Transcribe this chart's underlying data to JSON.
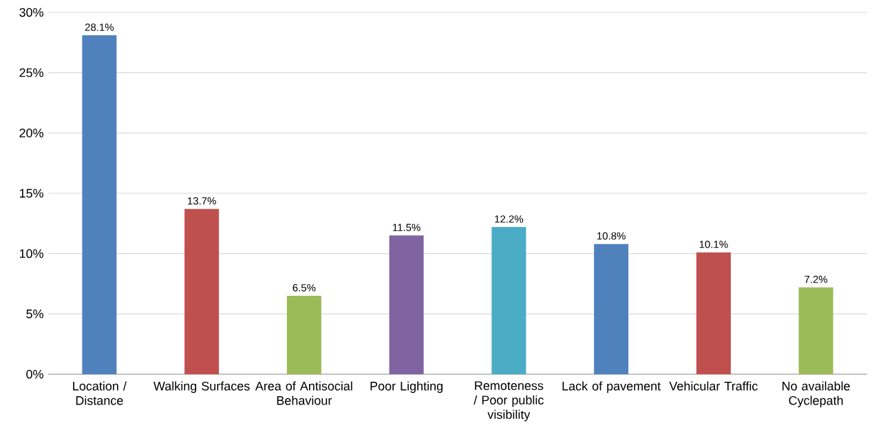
{
  "chart_data": {
    "type": "bar",
    "categories": [
      "Location / Distance",
      "Walking Surfaces",
      "Area of Antisocial Behaviour",
      "Poor Lighting",
      "Remoteness / Poor public visibility",
      "Lack of pavement",
      "Vehicular Traffic",
      "No available Cyclepath"
    ],
    "values": [
      28.1,
      13.7,
      6.5,
      11.5,
      12.2,
      10.8,
      10.1,
      7.2
    ],
    "value_labels": [
      "28.1%",
      "13.7%",
      "6.5%",
      "11.5%",
      "12.2%",
      "10.8%",
      "10.1%",
      "7.2%"
    ],
    "colors": [
      "#4f81bd",
      "#c0504d",
      "#9bbb59",
      "#8064a2",
      "#4bacc6",
      "#4f81bd",
      "#c0504d",
      "#9bbb59"
    ],
    "ylim": [
      0,
      30
    ],
    "yticks": [
      {
        "value": 0,
        "label": "0%"
      },
      {
        "value": 5,
        "label": "5%"
      },
      {
        "value": 10,
        "label": "10%"
      },
      {
        "value": 15,
        "label": "15%"
      },
      {
        "value": 20,
        "label": "20%"
      },
      {
        "value": 25,
        "label": "25%"
      },
      {
        "value": 30,
        "label": "30%"
      }
    ],
    "grid": "y"
  }
}
